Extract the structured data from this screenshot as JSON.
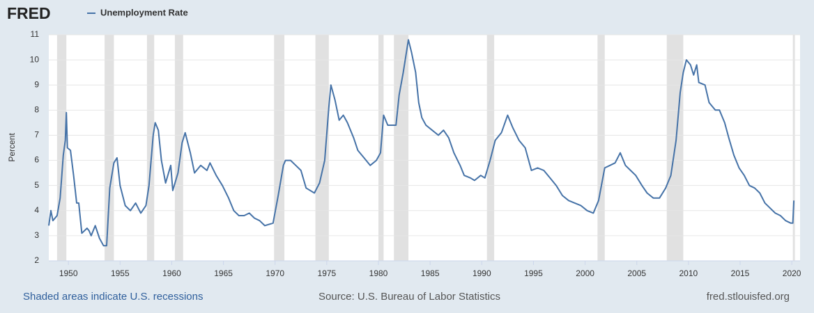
{
  "chart_data": {
    "type": "line",
    "brand": "FRED",
    "ylabel": "Percent",
    "note": "Shaded areas indicate U.S. recessions",
    "source": "Source: U.S. Bureau of Labor Statistics",
    "site": "fred.stlouisfed.org",
    "xlim": [
      1948.1,
      2020.8
    ],
    "ylim": [
      2,
      11
    ],
    "xticks": [
      1950,
      1955,
      1960,
      1965,
      1970,
      1975,
      1980,
      1985,
      1990,
      1995,
      2000,
      2005,
      2010,
      2015,
      2020
    ],
    "yticks": [
      2,
      3,
      4,
      5,
      6,
      7,
      8,
      9,
      10,
      11
    ],
    "grid": true,
    "recession_color": "#e1e1e1",
    "recessions": [
      [
        1948.9,
        1949.8
      ],
      [
        1953.5,
        1954.4
      ],
      [
        1957.6,
        1958.3
      ],
      [
        1960.3,
        1961.1
      ],
      [
        1969.9,
        1970.9
      ],
      [
        1973.9,
        1975.2
      ],
      [
        1980.0,
        1980.5
      ],
      [
        1981.5,
        1982.9
      ],
      [
        1990.5,
        1991.2
      ],
      [
        2001.2,
        2001.9
      ],
      [
        2007.9,
        2009.5
      ],
      [
        2020.1,
        2020.3
      ]
    ],
    "x": [
      1948.1,
      1948.3,
      1948.5,
      1948.9,
      1949.2,
      1949.5,
      1949.7,
      1949.8,
      1949.9,
      1950.2,
      1950.5,
      1950.8,
      1951.0,
      1951.3,
      1951.8,
      1952.0,
      1952.2,
      1952.6,
      1953.0,
      1953.4,
      1953.7,
      1954.0,
      1954.4,
      1954.7,
      1955.0,
      1955.5,
      1956.0,
      1956.5,
      1957.0,
      1957.5,
      1957.8,
      1958.2,
      1958.4,
      1958.7,
      1959.0,
      1959.4,
      1959.9,
      1960.1,
      1960.6,
      1961.0,
      1961.3,
      1961.8,
      1962.2,
      1962.8,
      1963.4,
      1963.7,
      1964.3,
      1964.9,
      1965.5,
      1966.0,
      1966.5,
      1967.0,
      1967.5,
      1968.0,
      1968.5,
      1969.0,
      1969.8,
      1970.3,
      1970.8,
      1971.0,
      1971.5,
      1972.0,
      1972.5,
      1973.0,
      1973.8,
      1974.3,
      1974.8,
      1975.2,
      1975.4,
      1975.8,
      1976.2,
      1976.6,
      1977.0,
      1977.6,
      1978.0,
      1978.6,
      1979.2,
      1979.8,
      1980.2,
      1980.5,
      1980.9,
      1981.3,
      1981.7,
      1982.0,
      1982.4,
      1982.9,
      1983.2,
      1983.6,
      1983.9,
      1984.2,
      1984.6,
      1985.2,
      1985.8,
      1986.3,
      1986.8,
      1987.3,
      1987.9,
      1988.3,
      1988.9,
      1989.3,
      1989.9,
      1990.3,
      1990.8,
      1991.3,
      1991.9,
      1992.5,
      1993.0,
      1993.6,
      1994.2,
      1994.8,
      1995.4,
      1996.0,
      1996.6,
      1997.2,
      1997.8,
      1998.4,
      1999.0,
      1999.6,
      2000.2,
      2000.8,
      2001.3,
      2001.9,
      2002.4,
      2002.9,
      2003.4,
      2003.9,
      2004.4,
      2004.9,
      2005.5,
      2006.0,
      2006.6,
      2007.2,
      2007.8,
      2008.3,
      2008.8,
      2009.2,
      2009.5,
      2009.8,
      2010.2,
      2010.5,
      2010.8,
      2011.0,
      2011.6,
      2012.0,
      2012.6,
      2013.0,
      2013.5,
      2013.9,
      2014.4,
      2014.9,
      2015.4,
      2015.9,
      2016.4,
      2016.9,
      2017.4,
      2017.9,
      2018.4,
      2018.9,
      2019.4,
      2019.9,
      2020.1,
      2020.2
    ],
    "series": [
      {
        "name": "Unemployment Rate",
        "color": "#4572a7",
        "values": [
          3.4,
          4.0,
          3.6,
          3.8,
          4.5,
          6.2,
          6.8,
          7.9,
          6.5,
          6.4,
          5.4,
          4.3,
          4.3,
          3.1,
          3.3,
          3.2,
          3.0,
          3.4,
          2.9,
          2.6,
          2.6,
          4.9,
          5.9,
          6.1,
          5.0,
          4.2,
          4.0,
          4.3,
          3.9,
          4.2,
          5.0,
          7.0,
          7.5,
          7.2,
          6.0,
          5.1,
          5.8,
          4.8,
          5.5,
          6.7,
          7.1,
          6.3,
          5.5,
          5.8,
          5.6,
          5.9,
          5.4,
          5.0,
          4.5,
          4.0,
          3.8,
          3.8,
          3.9,
          3.7,
          3.6,
          3.4,
          3.5,
          4.6,
          5.8,
          6.0,
          6.0,
          5.8,
          5.6,
          4.9,
          4.7,
          5.1,
          6.0,
          8.1,
          9.0,
          8.4,
          7.6,
          7.8,
          7.5,
          6.9,
          6.4,
          6.1,
          5.8,
          6.0,
          6.3,
          7.8,
          7.4,
          7.4,
          7.4,
          8.6,
          9.5,
          10.8,
          10.3,
          9.5,
          8.3,
          7.7,
          7.4,
          7.2,
          7.0,
          7.2,
          6.9,
          6.3,
          5.8,
          5.4,
          5.3,
          5.2,
          5.4,
          5.3,
          6.0,
          6.8,
          7.1,
          7.8,
          7.3,
          6.8,
          6.5,
          5.6,
          5.7,
          5.6,
          5.3,
          5.0,
          4.6,
          4.4,
          4.3,
          4.2,
          4.0,
          3.9,
          4.4,
          5.7,
          5.8,
          5.9,
          6.3,
          5.8,
          5.6,
          5.4,
          5.0,
          4.7,
          4.5,
          4.5,
          4.9,
          5.4,
          6.8,
          8.7,
          9.5,
          10.0,
          9.8,
          9.4,
          9.8,
          9.1,
          9.0,
          8.3,
          8.0,
          8.0,
          7.5,
          6.9,
          6.2,
          5.7,
          5.4,
          5.0,
          4.9,
          4.7,
          4.3,
          4.1,
          3.9,
          3.8,
          3.6,
          3.5,
          3.5,
          4.4
        ]
      }
    ]
  }
}
